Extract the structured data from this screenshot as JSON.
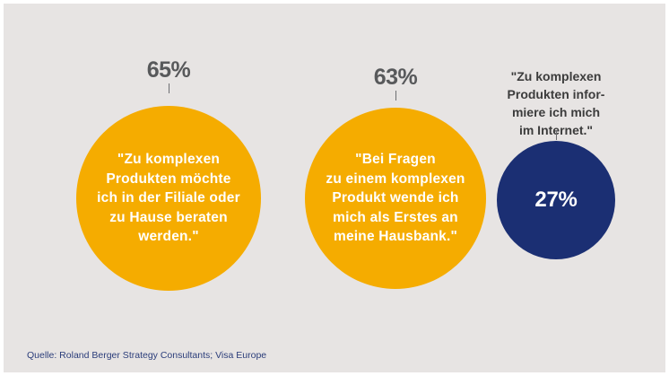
{
  "chart_data": {
    "type": "bubble",
    "series": [
      {
        "value": 65,
        "value_label": "65%",
        "quote": "\"Zu komplexen\nProdukten möchte\nich in der Filiale oder\nzu Hause beraten\nwerden.\"",
        "color": "#f5ac00"
      },
      {
        "value": 63,
        "value_label": "63%",
        "quote": "\"Bei Fragen\nzu einem komplexen\nProdukt wende ich\nmich als Erstes an\nmeine Hausbank.\"",
        "color": "#f5ac00"
      },
      {
        "value": 27,
        "value_label": "27%",
        "quote": "\"Zu komplexen\nProdukten infor-\nmiere ich mich\nim Internet.\"",
        "color": "#1b2f73"
      }
    ],
    "source": "Quelle: Roland Berger Strategy Consultants; Visa Europe"
  },
  "colors": {
    "background": "#e7e4e3",
    "bubble_primary": "#f5ac00",
    "bubble_secondary": "#1b2f73",
    "label_gray": "#58595b"
  }
}
